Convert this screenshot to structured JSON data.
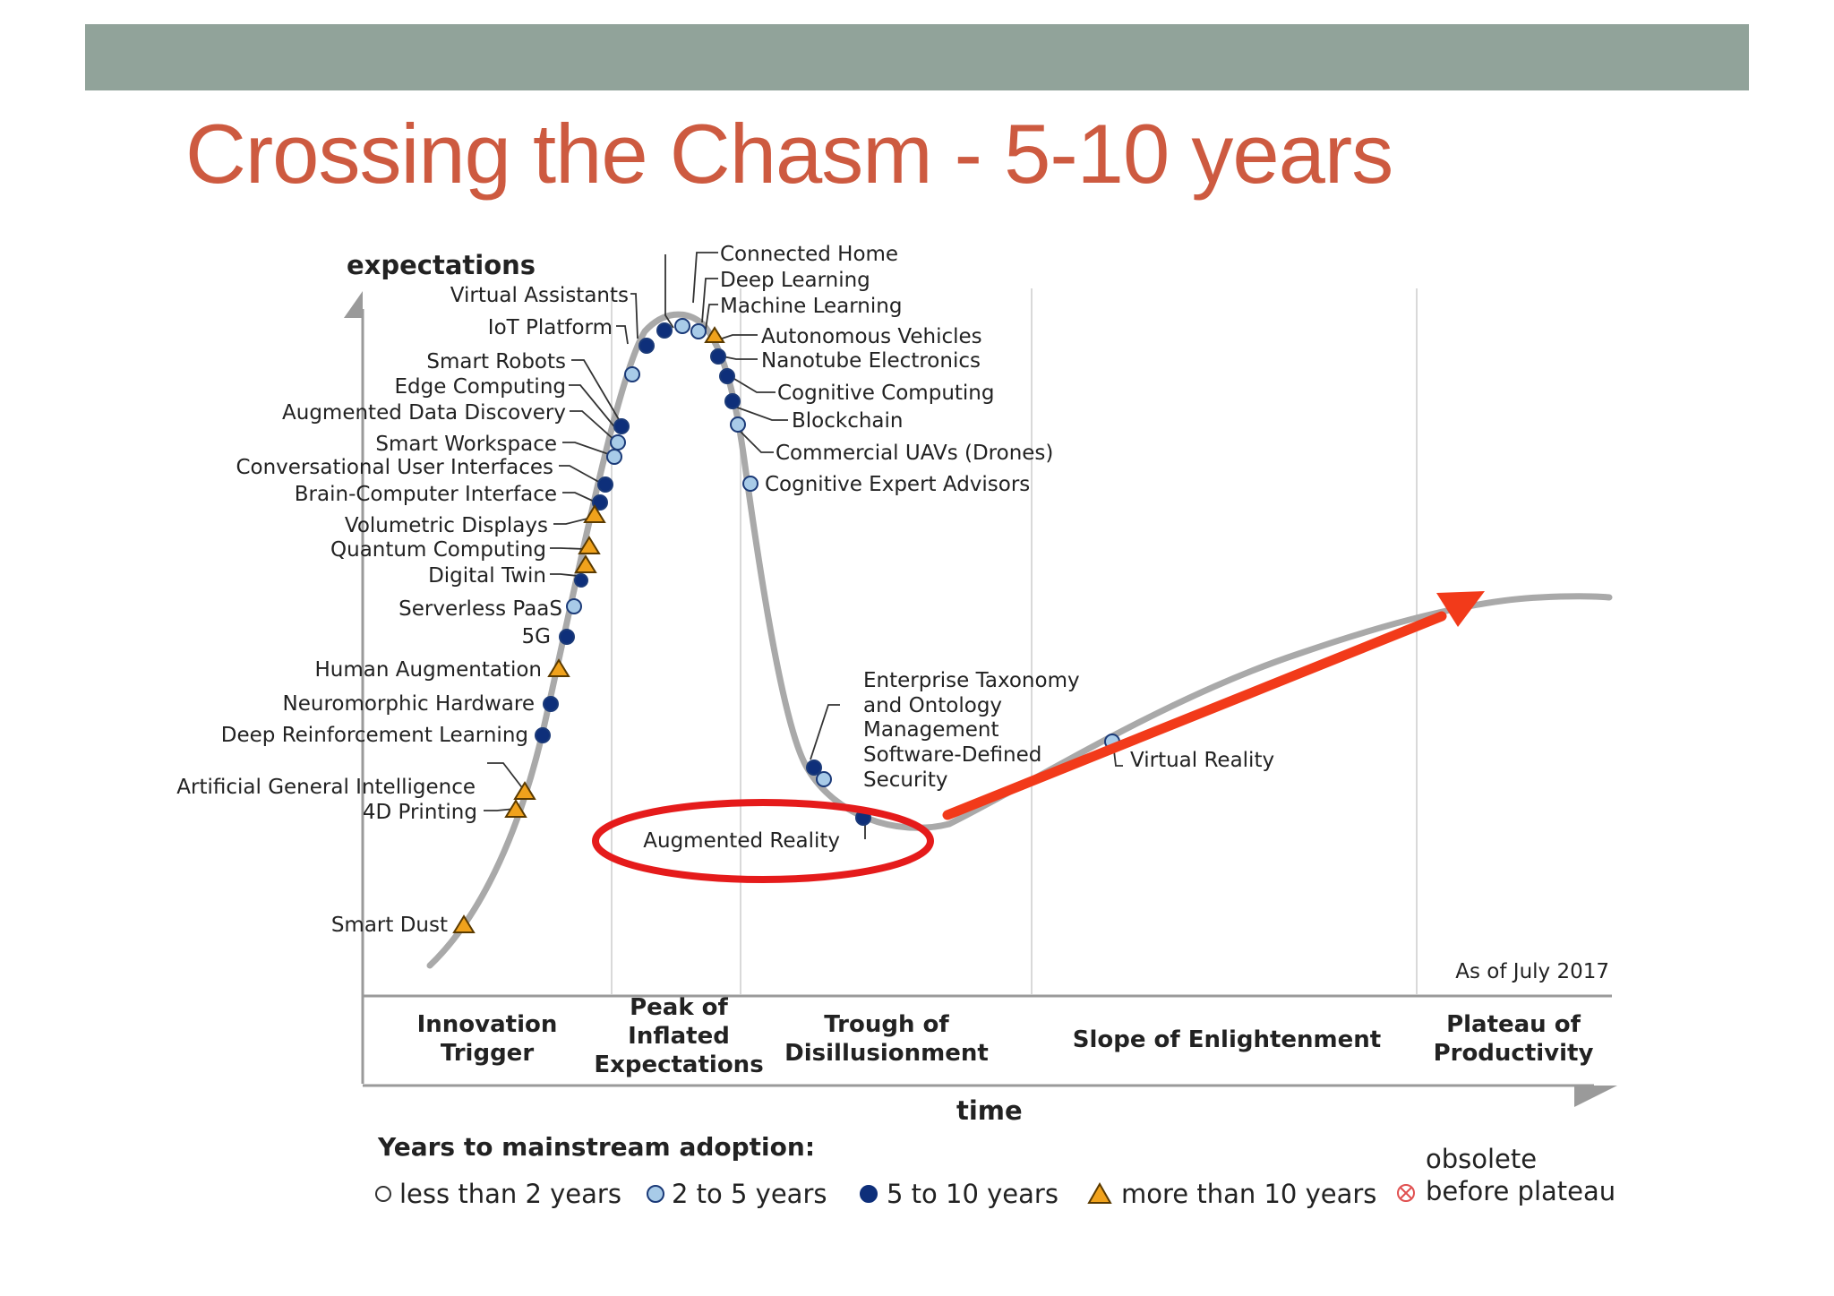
{
  "slide": {
    "title": "Crossing the Chasm - 5-10 years"
  },
  "chart": {
    "y_axis_label": "expectations",
    "x_axis_label": "time",
    "as_of": "As of July 2017",
    "phases": [
      [
        "Innovation",
        "Trigger"
      ],
      [
        "Peak of",
        "Inflated",
        "Expectations"
      ],
      [
        "Trough of",
        "Disillusionment"
      ],
      [
        "Slope of Enlightenment"
      ],
      [
        "Plateau of",
        "Productivity"
      ]
    ],
    "technologies": [
      {
        "label": "Connected Home",
        "category": "2-5"
      },
      {
        "label": "Deep Learning",
        "category": "2-5"
      },
      {
        "label": "Machine Learning",
        "category": "2-5"
      },
      {
        "label": "Virtual Assistants",
        "category": "5-10"
      },
      {
        "label": "IoT Platform",
        "category": "5-10"
      },
      {
        "label": "Smart Robots",
        "category": "2-5"
      },
      {
        "label": "Edge Computing",
        "category": "5-10"
      },
      {
        "label": "Augmented Data Discovery",
        "category": "2-5"
      },
      {
        "label": "Smart Workspace",
        "category": "2-5"
      },
      {
        "label": "Conversational User Interfaces",
        "category": "5-10"
      },
      {
        "label": "Brain-Computer Interface",
        "category": "5-10"
      },
      {
        "label": "Volumetric Displays",
        "category": ">10"
      },
      {
        "label": "Quantum Computing",
        "category": ">10"
      },
      {
        "label": "Digital Twin",
        "category": "5-10"
      },
      {
        "label": "Serverless PaaS",
        "category": "2-5"
      },
      {
        "label": "5G",
        "category": "5-10"
      },
      {
        "label": "Human Augmentation",
        "category": ">10"
      },
      {
        "label": "Neuromorphic Hardware",
        "category": "5-10"
      },
      {
        "label": "Deep Reinforcement Learning",
        "category": "5-10"
      },
      {
        "label": "Artificial General Intelligence",
        "category": ">10"
      },
      {
        "label": "4D Printing",
        "category": ">10"
      },
      {
        "label": "Smart Dust",
        "category": ">10"
      },
      {
        "label": "Autonomous Vehicles",
        "category": ">10"
      },
      {
        "label": "Nanotube Electronics",
        "category": "5-10"
      },
      {
        "label": "Cognitive Computing",
        "category": "5-10"
      },
      {
        "label": "Blockchain",
        "category": "5-10"
      },
      {
        "label": "Commercial UAVs (Drones)",
        "category": "2-5"
      },
      {
        "label": "Cognitive Expert Advisors",
        "category": "2-5"
      },
      {
        "label": "Enterprise Taxonomy",
        "category": "5-10"
      },
      {
        "label": "and Ontology",
        "category": "5-10"
      },
      {
        "label": "Management",
        "category": "5-10"
      },
      {
        "label": "Software-Defined",
        "category": "2-5"
      },
      {
        "label": "Security",
        "category": "2-5"
      },
      {
        "label": "Augmented Reality",
        "category": "5-10"
      },
      {
        "label": "Virtual Reality",
        "category": "2-5"
      }
    ],
    "legend": {
      "title": "Years to mainstream adoption:",
      "items": [
        "less than 2 years",
        "2 to 5 years",
        "5 to 10 years",
        "more than 10 years"
      ],
      "obsolete": [
        "obsolete",
        "before plateau"
      ]
    },
    "colors": {
      "curve": "#a9a9a9",
      "light_marker": "#a8cbe8",
      "dark_marker": "#0e2f7a",
      "triangle": "#f0a21c",
      "highlight": "#e51b1b",
      "arrow": "#f23a1a"
    }
  }
}
